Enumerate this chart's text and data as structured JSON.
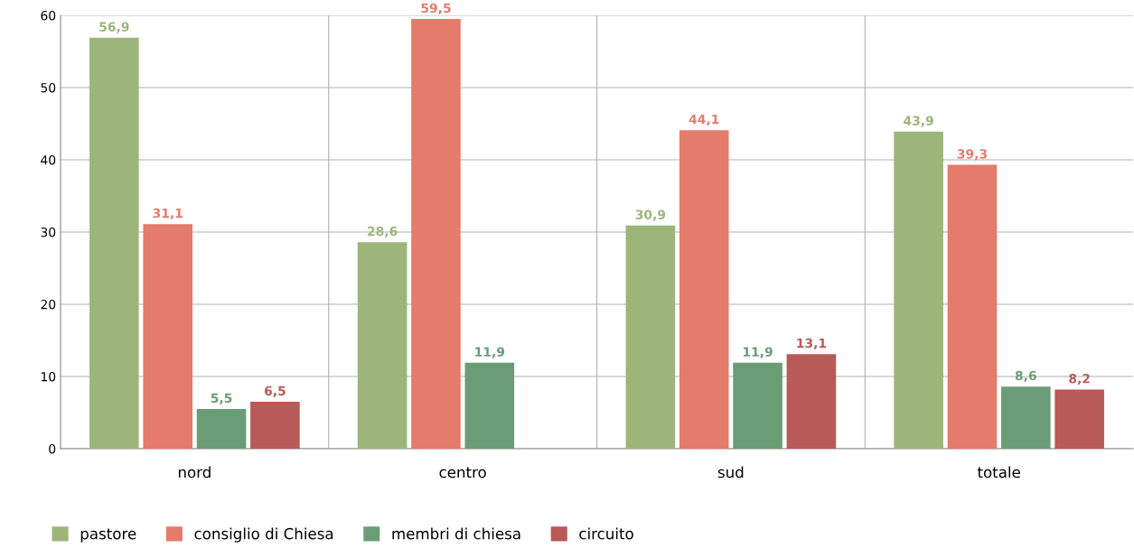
{
  "chart_data": {
    "type": "bar",
    "categories": [
      "nord",
      "centro",
      "sud",
      "totale"
    ],
    "series": [
      {
        "name": "pastore",
        "color": "#9cb679",
        "values": [
          56.9,
          28.6,
          30.9,
          43.9
        ],
        "value_labels": [
          "56,9",
          "28,6",
          "30,9",
          "43,9"
        ]
      },
      {
        "name": "consiglio di Chiesa",
        "color": "#e57b6b",
        "values": [
          31.1,
          59.5,
          44.1,
          39.3
        ],
        "value_labels": [
          "31,1",
          "59,5",
          "44,1",
          "39,3"
        ]
      },
      {
        "name": "membri di chiesa",
        "color": "#6a9d76",
        "values": [
          5.5,
          11.9,
          11.9,
          8.6
        ],
        "value_labels": [
          "5,5",
          "11,9",
          "11,9",
          "8,6"
        ]
      },
      {
        "name": "circuito",
        "color": "#b85a58",
        "values": [
          6.5,
          null,
          13.1,
          8.2
        ],
        "value_labels": [
          "6,5",
          null,
          "13,1",
          "8,2"
        ]
      }
    ],
    "ylim": [
      0,
      60
    ],
    "yticks": [
      0,
      10,
      20,
      30,
      40,
      50,
      60
    ],
    "grid": true,
    "legend": "bottom"
  }
}
